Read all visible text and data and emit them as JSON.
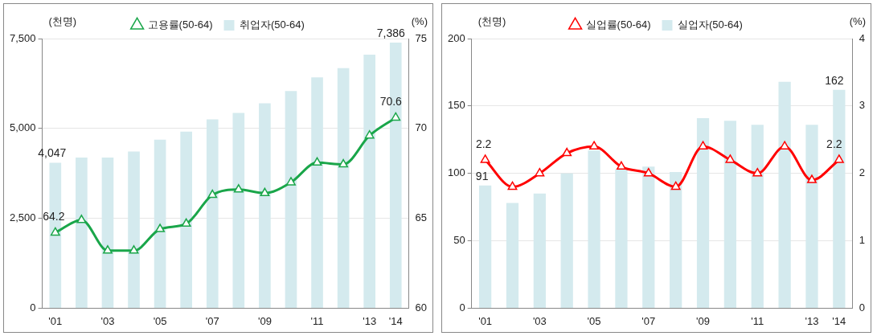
{
  "chart_data": [
    {
      "type": "bar",
      "ylabel": "(천명)",
      "y2label": "(%)",
      "categories": [
        "'01",
        null,
        "'03",
        null,
        "'05",
        null,
        "'07",
        null,
        "'09",
        null,
        "'11",
        null,
        "'13",
        "'14"
      ],
      "series": [
        {
          "name": "취업자(50-64)",
          "color": "#d4eaee",
          "values": [
            4047,
            4190,
            4190,
            4360,
            4690,
            4910,
            5250,
            5430,
            5700,
            6040,
            6420,
            6680,
            7050,
            7386
          ],
          "value_labels": [
            "4,047",
            null,
            null,
            null,
            null,
            null,
            null,
            null,
            null,
            null,
            null,
            null,
            null,
            "7,386"
          ]
        },
        {
          "name": "고용률(50-64)",
          "type": "line",
          "axis": "y2",
          "color": "#1aa64a",
          "marker": "triangle",
          "values": [
            64.2,
            64.9,
            63.2,
            63.2,
            64.4,
            64.7,
            66.3,
            66.6,
            66.4,
            67.0,
            68.1,
            68.0,
            69.6,
            70.6
          ],
          "value_labels": [
            "64.2",
            null,
            null,
            null,
            null,
            null,
            null,
            null,
            null,
            null,
            null,
            null,
            null,
            "70.6"
          ]
        }
      ],
      "ylim": [
        0,
        7500
      ],
      "yticks": [
        {
          "value": 0,
          "label": "0"
        },
        {
          "value": 2500,
          "label": "2,500"
        },
        {
          "value": 5000,
          "label": "5,000"
        },
        {
          "value": 7500,
          "label": "7,500"
        }
      ],
      "y2lim": [
        60,
        75
      ],
      "y2ticks": [
        60,
        65,
        70,
        75
      ],
      "grid": "y",
      "legend": "top"
    },
    {
      "type": "bar",
      "ylabel": "(천명)",
      "y2label": "(%)",
      "categories": [
        "'01",
        null,
        "'03",
        null,
        "'05",
        null,
        "'07",
        null,
        "'09",
        null,
        "'11",
        null,
        "'13",
        "'14"
      ],
      "series": [
        {
          "name": "실업자(50-64)",
          "color": "#d4eaee",
          "values": [
            91,
            78,
            85,
            100,
            117,
            103,
            105,
            101,
            141,
            139,
            136,
            168,
            136,
            162
          ],
          "value_labels": [
            "91",
            null,
            null,
            null,
            null,
            null,
            null,
            null,
            null,
            null,
            null,
            null,
            null,
            "162"
          ]
        },
        {
          "name": "실업률(50-64)",
          "type": "line",
          "axis": "y2",
          "color": "#ff0000",
          "marker": "triangle",
          "values": [
            2.2,
            1.8,
            2.0,
            2.3,
            2.4,
            2.1,
            2.0,
            1.8,
            2.4,
            2.2,
            2.0,
            2.4,
            1.9,
            2.2
          ],
          "value_labels": [
            "2.2",
            null,
            null,
            null,
            null,
            null,
            null,
            null,
            null,
            null,
            null,
            null,
            null,
            "2.2"
          ]
        }
      ],
      "ylim": [
        0,
        200
      ],
      "yticks": [
        0,
        50,
        100,
        150,
        200
      ],
      "y2lim": [
        0,
        4
      ],
      "y2ticks": [
        0,
        1,
        2,
        3,
        4
      ],
      "grid": "y",
      "legend": "top"
    }
  ]
}
